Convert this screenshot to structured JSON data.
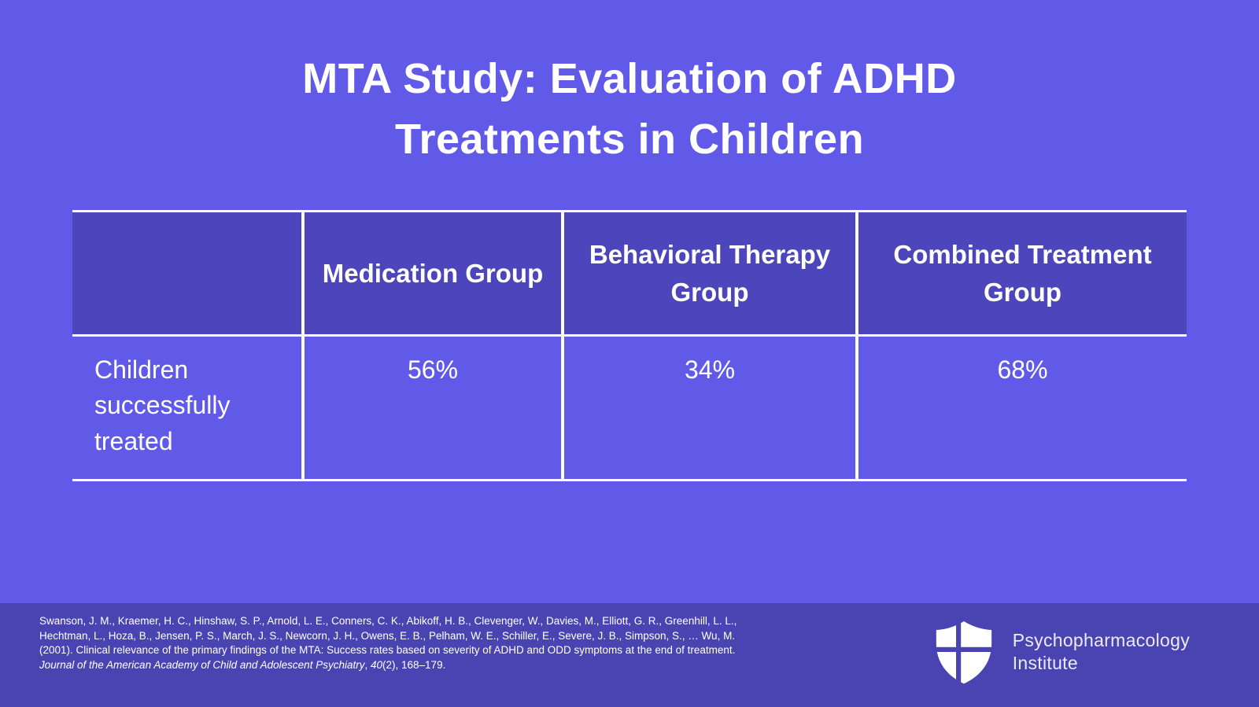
{
  "title": {
    "line1": "MTA Study: Evaluation of ADHD",
    "line2": "Treatments in Children"
  },
  "table": {
    "columns": [
      "Medication Group",
      "Behavioral Therapy Group",
      "Combined Treatment Group"
    ],
    "row_label": "Children successfully treated",
    "values": [
      "56%",
      "34%",
      "68%"
    ]
  },
  "footer": {
    "citation_segments": [
      {
        "text": "Swanson, J. M., Kraemer, H. C., Hinshaw, S. P., Arnold, L. E., Conners, C. K., Abikoff, H. B., Clevenger, W., Davies, M., Elliott, G. R., Greenhill, L. L., Hechtman, L., Hoza, B., Jensen, P. S., March, J. S., Newcorn, J. H., Owens, E. B., Pelham, W. E., Schiller, E., Severe, J. B., Simpson, S., … Wu, M. (2001). Clinical relevance of the primary findings of the MTA: Success rates based on severity of ADHD and ODD symptoms at the end of treatment. ",
        "italic": false
      },
      {
        "text": "Journal of the American Academy of Child and Adolescent Psychiatry",
        "italic": true
      },
      {
        "text": ", ",
        "italic": false
      },
      {
        "text": "40",
        "italic": true
      },
      {
        "text": "(2), 168–179.",
        "italic": false
      }
    ],
    "logo_line1": "Psychopharmacology",
    "logo_line2": "Institute"
  },
  "colors": {
    "page_bg": "#615AE9",
    "table_header_bg": "#4C45BC",
    "footer_bg": "#4A44B2",
    "grid_line": "#FCFBFF",
    "text": "#FFFFFF"
  }
}
